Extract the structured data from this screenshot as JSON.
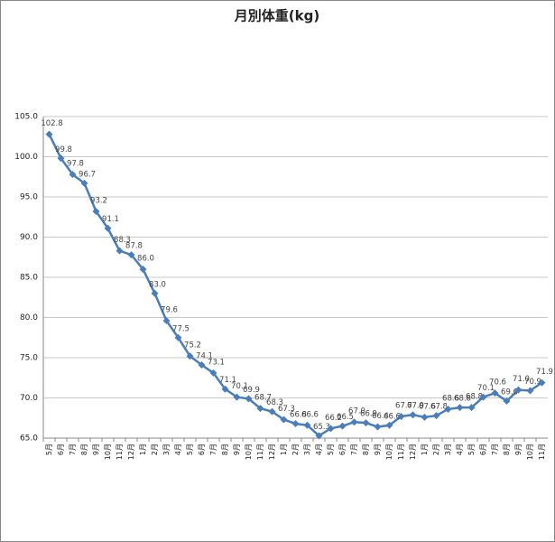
{
  "chart_data": {
    "type": "line",
    "title": "月別体重(kg)",
    "categories": [
      "5月",
      "6月",
      "7月",
      "8月",
      "9月",
      "10月",
      "11月",
      "12月",
      "1月",
      "2月",
      "3月",
      "4月",
      "5月",
      "6月",
      "7月",
      "8月",
      "9月",
      "10月",
      "11月",
      "12月",
      "1月",
      "2月",
      "3月",
      "4月",
      "5月",
      "6月",
      "7月",
      "8月",
      "9月",
      "10月",
      "11月",
      "12月",
      "1月",
      "2月",
      "3月",
      "4月",
      "5月",
      "6月",
      "7月",
      "8月",
      "9月",
      "10月",
      "11月"
    ],
    "series": [
      {
        "color": "#4a7ebb",
        "values": [
          102.8,
          99.8,
          97.8,
          96.7,
          93.2,
          91.1,
          88.3,
          87.8,
          86.0,
          83.0,
          79.6,
          77.5,
          75.2,
          74.1,
          73.1,
          71.1,
          70.1,
          69.9,
          68.7,
          68.3,
          67.3,
          66.8,
          66.6,
          65.3,
          66.2,
          66.5,
          67.0,
          66.9,
          66.4,
          66.6,
          67.7,
          67.9,
          67.6,
          67.8,
          68.6,
          68.8,
          68.8,
          70.1,
          70.6,
          69.6,
          71.0,
          70.9,
          71.9
        ],
        "value_labels": [
          "102.8",
          "99.8",
          "97.8",
          "96.7",
          "93.2",
          "91.1",
          "88.3",
          "87.8",
          "86.0",
          "83.0",
          "79.6",
          "77.5",
          "75.2",
          "74.1",
          "73.1",
          "71.1",
          "70.1",
          "69.9",
          "68.7",
          "68.3",
          "67.3",
          "66.8",
          "66.6",
          "65.3",
          "66.2",
          "66.5",
          "67.0",
          "66.9",
          "66.4",
          "66.6",
          "67.7",
          "67.9",
          "67.6",
          "67.8",
          "68.6",
          "68.8",
          "68.8",
          "70.1",
          "70.6",
          "69.6",
          "71.0",
          "70.9",
          "71.9"
        ]
      }
    ],
    "ylim": [
      65,
      105
    ],
    "yticks": [
      {
        "value": 65,
        "label": "65.0"
      },
      {
        "value": 70,
        "label": "70.0"
      },
      {
        "value": 75,
        "label": "75.0"
      },
      {
        "value": 80,
        "label": "80.0"
      },
      {
        "value": 85,
        "label": "85.0"
      },
      {
        "value": 90,
        "label": "90.0"
      },
      {
        "value": 95,
        "label": "95.0"
      },
      {
        "value": 100,
        "label": "100.0"
      },
      {
        "value": 105,
        "label": "105.0"
      }
    ],
    "grid": true
  }
}
